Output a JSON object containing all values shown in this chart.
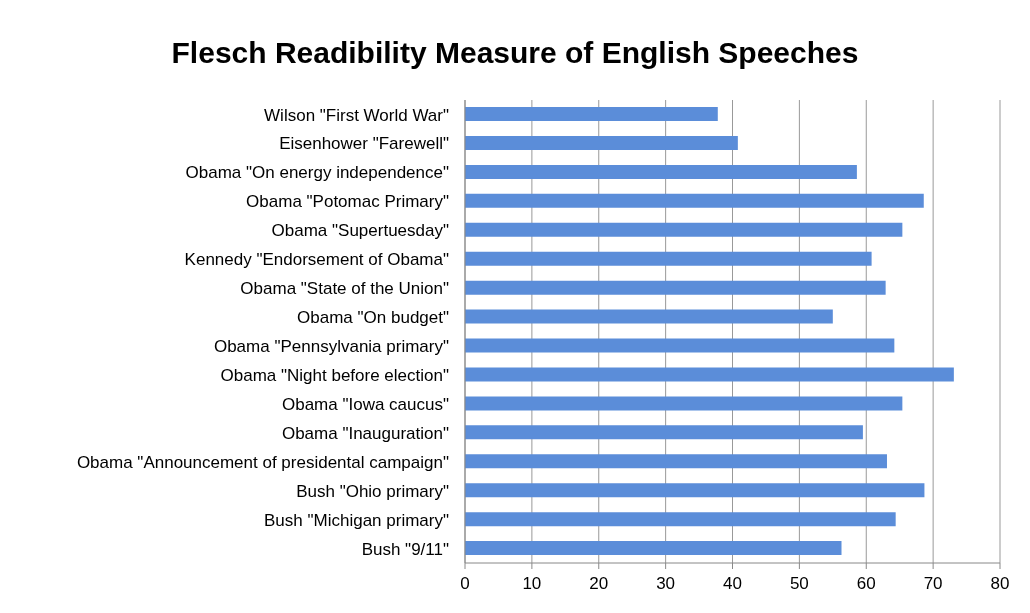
{
  "chart_data": {
    "type": "bar",
    "orientation": "horizontal",
    "title": "Flesch Readibility Measure of English Speeches",
    "categories": [
      "Wilson \"First World War\"",
      "Eisenhower \"Farewell\"",
      "Obama \"On energy independence\"",
      "Obama \"Potomac Primary\"",
      "Obama \"Supertuesday\"",
      "Kennedy \"Endorsement of Obama\"",
      "Obama \"State of the Union\"",
      "Obama \"On budget\"",
      "Obama \"Pennsylvania primary\"",
      "Obama \"Night before election\"",
      "Obama \"Iowa caucus\"",
      "Obama \"Inauguration\"",
      "Obama \"Announcement of presidental campaign\"",
      "Bush \"Ohio primary\"",
      "Bush \"Michigan primary\"",
      "Bush \"9/11\""
    ],
    "values": [
      37.8,
      40.8,
      58.6,
      68.6,
      65.4,
      60.8,
      62.9,
      55.0,
      64.2,
      73.1,
      65.4,
      59.5,
      63.1,
      68.7,
      64.4,
      56.3
    ],
    "color": "#5b8dd9",
    "xlim": [
      0,
      80
    ],
    "xticks": [
      0,
      10,
      20,
      30,
      40,
      50,
      60,
      70,
      80
    ],
    "grid": "x"
  }
}
